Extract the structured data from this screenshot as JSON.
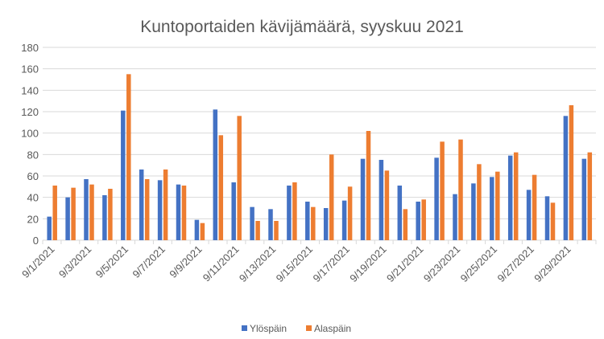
{
  "chart_data": {
    "type": "bar",
    "title": "Kuntoportaiden kävijämäärä, syyskuu 2021",
    "xlabel": "",
    "ylabel": "",
    "ylim": [
      0,
      180
    ],
    "yticks": [
      0,
      20,
      40,
      60,
      80,
      100,
      120,
      140,
      160,
      180
    ],
    "grid": true,
    "legend_position": "bottom",
    "categories": [
      "9/1/2021",
      "9/2/2021",
      "9/3/2021",
      "9/4/2021",
      "9/5/2021",
      "9/6/2021",
      "9/7/2021",
      "9/8/2021",
      "9/9/2021",
      "9/10/2021",
      "9/11/2021",
      "9/12/2021",
      "9/13/2021",
      "9/14/2021",
      "9/15/2021",
      "9/16/2021",
      "9/17/2021",
      "9/18/2021",
      "9/19/2021",
      "9/20/2021",
      "9/21/2021",
      "9/22/2021",
      "9/23/2021",
      "9/24/2021",
      "9/25/2021",
      "9/26/2021",
      "9/27/2021",
      "9/28/2021",
      "9/29/2021",
      "9/30/2021"
    ],
    "series": [
      {
        "name": "Ylöspäin",
        "color": "#4472C4",
        "values": [
          22,
          40,
          57,
          42,
          121,
          66,
          56,
          52,
          19,
          122,
          54,
          31,
          29,
          51,
          36,
          30,
          37,
          76,
          75,
          51,
          36,
          77,
          43,
          53,
          59,
          79,
          47,
          41,
          116,
          76
        ]
      },
      {
        "name": "Alaspäin",
        "color": "#ED7D31",
        "values": [
          51,
          49,
          52,
          48,
          155,
          57,
          66,
          51,
          16,
          98,
          116,
          18,
          18,
          54,
          31,
          80,
          50,
          102,
          65,
          29,
          38,
          92,
          94,
          71,
          64,
          82,
          61,
          35,
          126,
          82
        ]
      }
    ]
  }
}
